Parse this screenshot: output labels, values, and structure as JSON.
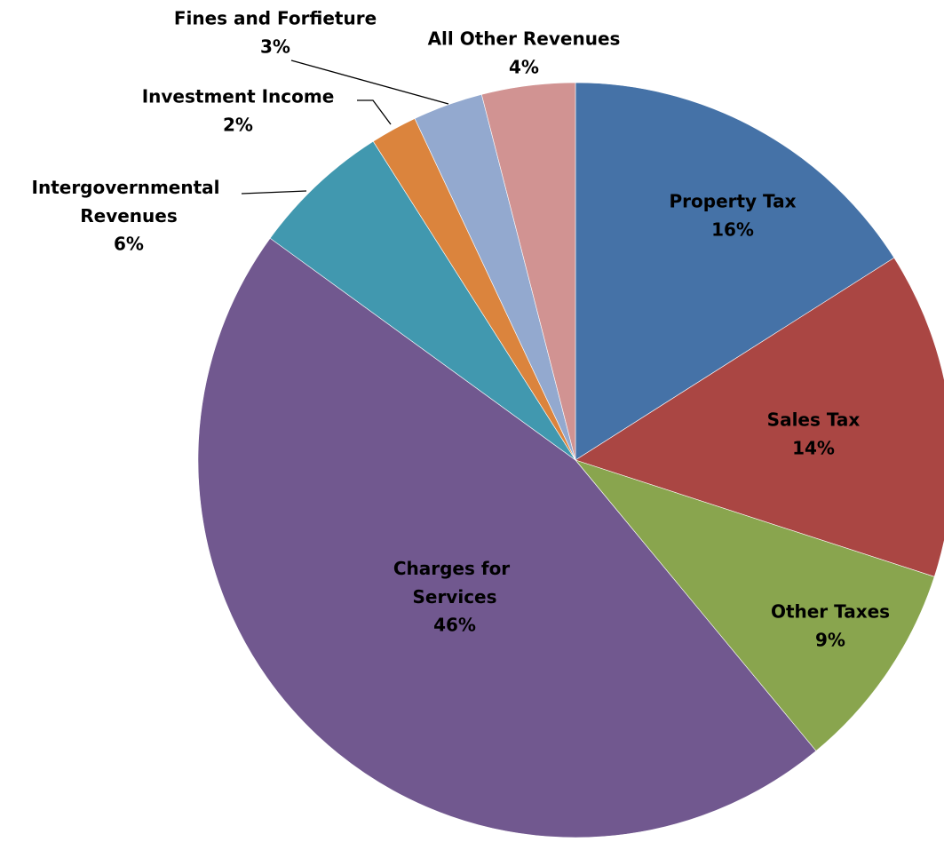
{
  "chart_data": {
    "type": "pie",
    "categories": [
      "Property Tax",
      "Sales Tax",
      "Other Taxes",
      "Charges for Services",
      "Intergovernmental Revenues",
      "Investment Income",
      "Fines and Forfieture",
      "All Other Revenues"
    ],
    "values": [
      16,
      14,
      9,
      46,
      6,
      2,
      3,
      4
    ],
    "value_labels": [
      "16%",
      "14%",
      "9%",
      "46%",
      "6%",
      "2%",
      "3%",
      "4%"
    ],
    "colors": [
      "#4572a7",
      "#aa4643",
      "#89a54e",
      "#71588f",
      "#4198af",
      "#db843d",
      "#93a9cf",
      "#d19392"
    ]
  }
}
